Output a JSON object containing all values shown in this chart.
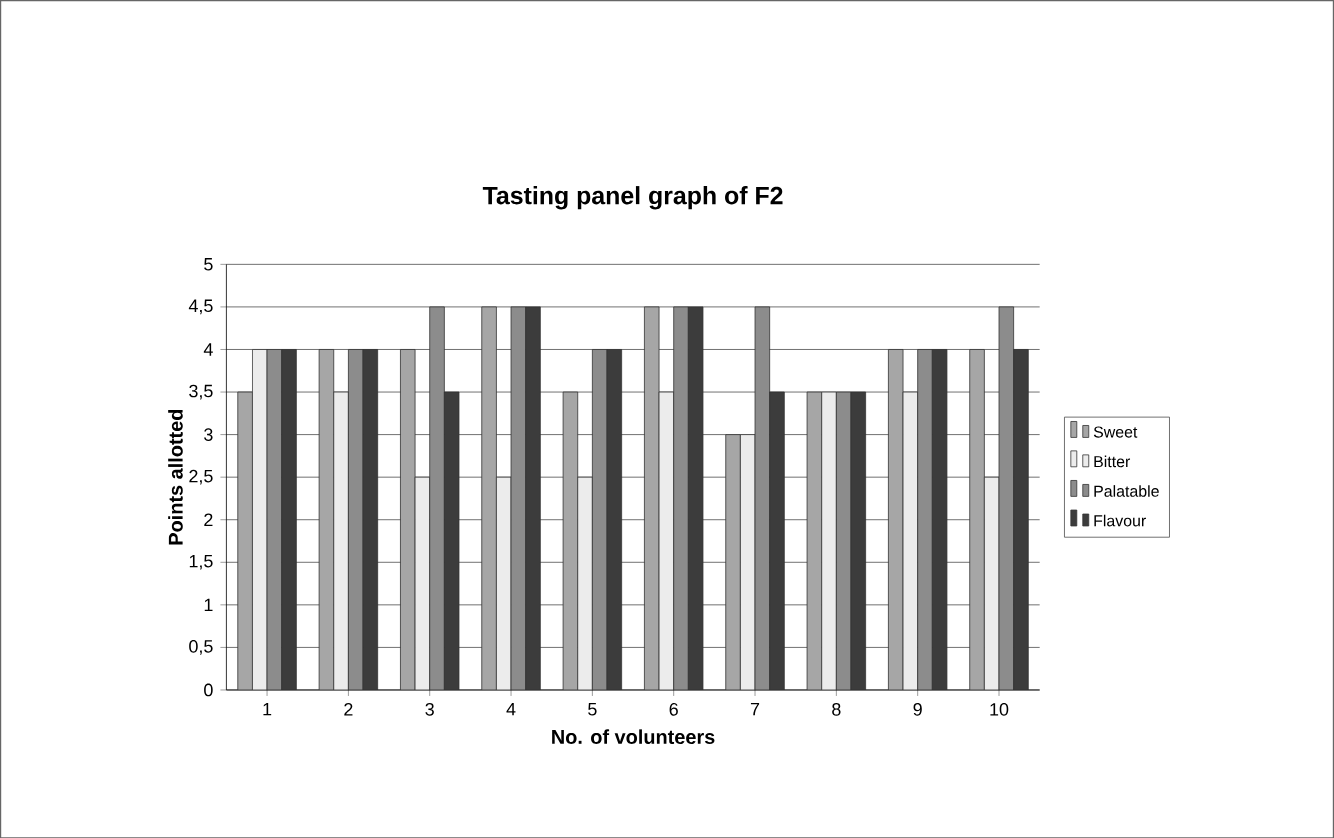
{
  "chart_data": {
    "type": "bar",
    "title": "Tasting panel graph of F2",
    "xlabel": "No. of volunteers",
    "ylabel": "Points allotted",
    "categories": [
      "1",
      "2",
      "3",
      "4",
      "5",
      "6",
      "7",
      "8",
      "9",
      "10"
    ],
    "series": [
      {
        "name": "Sweet",
        "color": "#a6a6a6",
        "values": [
          3.5,
          4,
          4,
          4.5,
          3.5,
          4.5,
          3,
          3.5,
          4,
          4
        ]
      },
      {
        "name": "Bitter",
        "color": "#ececec",
        "values": [
          4,
          3.5,
          2.5,
          2.5,
          2.5,
          3.5,
          3,
          3.5,
          3.5,
          2.5
        ]
      },
      {
        "name": "Palatable",
        "color": "#8c8c8c",
        "values": [
          4,
          4,
          4.5,
          4.5,
          4,
          4.5,
          4.5,
          3.5,
          4,
          4.5
        ]
      },
      {
        "name": "Flavour",
        "color": "#3c3c3c",
        "values": [
          4,
          4,
          3.5,
          4.5,
          4,
          4.5,
          3.5,
          3.5,
          4,
          4
        ]
      }
    ],
    "ylim": [
      0,
      5
    ],
    "yticks": [
      0,
      {
        "value": 0.5,
        "label": "0,5"
      },
      1,
      {
        "value": 1.5,
        "label": "1,5"
      },
      2,
      {
        "value": 2.5,
        "label": "2,5"
      },
      3,
      {
        "value": 3.5,
        "label": "3,5"
      },
      4,
      {
        "value": 4.5,
        "label": "4,5"
      },
      5
    ],
    "grid": "y",
    "legend": "right"
  }
}
